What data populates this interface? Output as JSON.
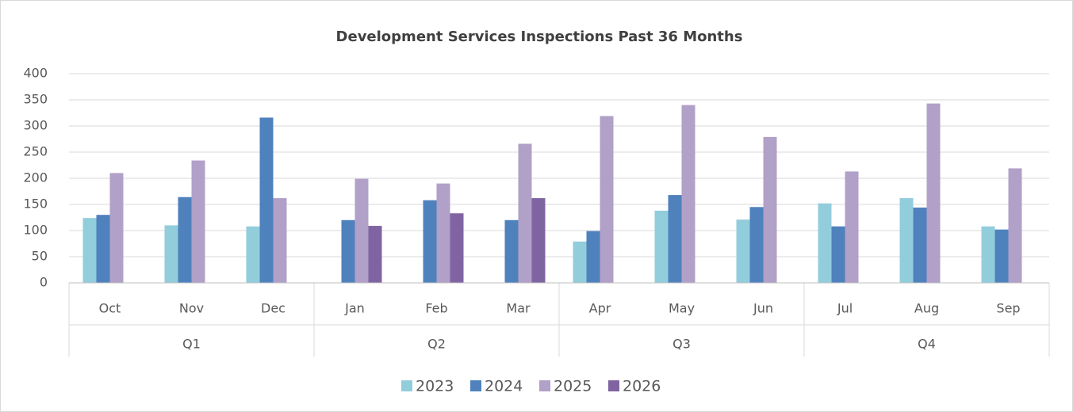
{
  "chart_data": {
    "type": "bar",
    "title": "Development Services Inspections Past 36 Months",
    "quarters": [
      {
        "name": "Q1",
        "categories": [
          "Oct",
          "Nov",
          "Dec"
        ]
      },
      {
        "name": "Q2",
        "categories": [
          "Jan",
          "Feb",
          "Mar"
        ]
      },
      {
        "name": "Q3",
        "categories": [
          "Apr",
          "May",
          "Jun"
        ]
      },
      {
        "name": "Q4",
        "categories": [
          "Jul",
          "Aug",
          "Sep"
        ]
      }
    ],
    "series": [
      {
        "name": "2023",
        "color": "#92cddc",
        "values": [
          124,
          110,
          108,
          null,
          null,
          null,
          79,
          138,
          121,
          152,
          162,
          108
        ]
      },
      {
        "name": "2024",
        "color": "#4f81bd",
        "values": [
          130,
          164,
          316,
          120,
          158,
          120,
          99,
          168,
          145,
          108,
          144,
          102
        ]
      },
      {
        "name": "2025",
        "color": "#b1a0c7",
        "values": [
          210,
          234,
          162,
          199,
          190,
          266,
          319,
          340,
          279,
          213,
          343,
          219
        ]
      },
      {
        "name": "2026",
        "color": "#8064a2",
        "values": [
          null,
          null,
          null,
          109,
          133,
          162,
          null,
          null,
          null,
          null,
          null,
          null
        ]
      }
    ],
    "ylim": [
      0,
      400
    ],
    "yticks": [
      0,
      50,
      100,
      150,
      200,
      250,
      300,
      350,
      400
    ],
    "grid": true,
    "legend": "bottom"
  }
}
